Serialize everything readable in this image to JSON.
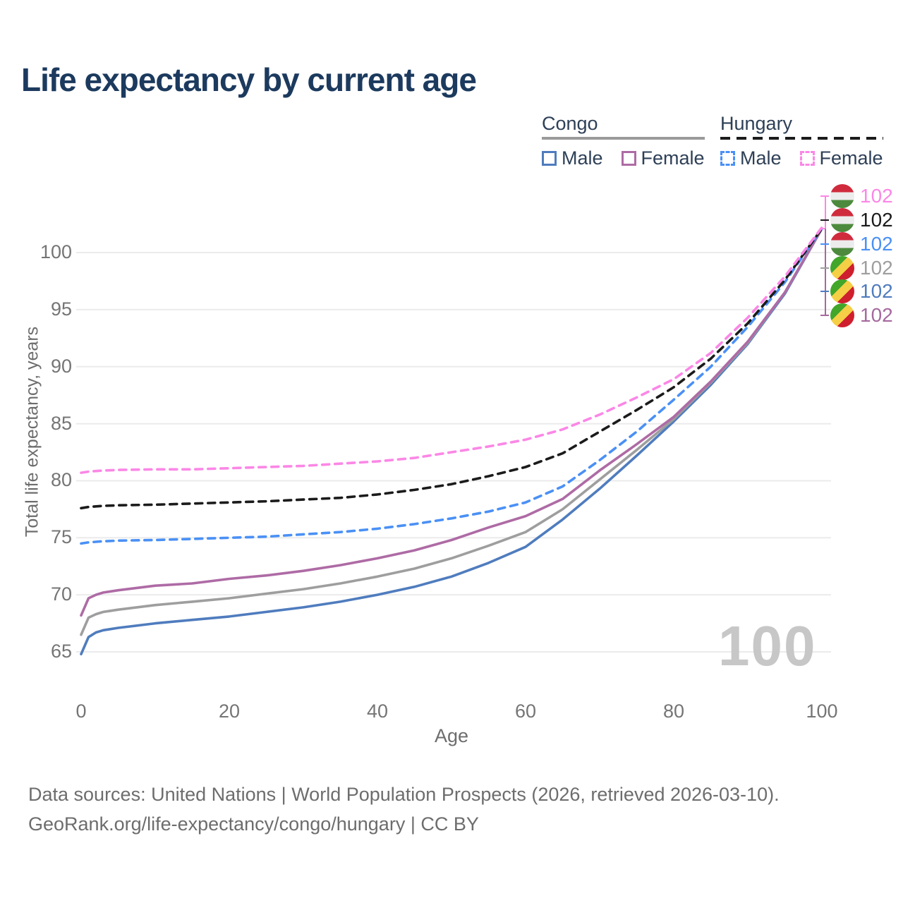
{
  "title": "Life expectancy by current age",
  "legend": {
    "groups": [
      {
        "label": "Congo",
        "line_style": "solid",
        "line_color": "#9a9a9a",
        "items": [
          {
            "label": "Male",
            "color": "#4f7cbe",
            "dashed": false
          },
          {
            "label": "Female",
            "color": "#ae6ba5",
            "dashed": false
          }
        ]
      },
      {
        "label": "Hungary",
        "line_style": "dashed",
        "line_color": "#1b1b1b",
        "items": [
          {
            "label": "Male",
            "color": "#4a90f5",
            "dashed": true
          },
          {
            "label": "Female",
            "color": "#fb87e6",
            "dashed": true
          }
        ]
      }
    ]
  },
  "axes": {
    "y_title": "Total life expectancy, years",
    "x_title": "Age",
    "y_ticks": [
      65,
      70,
      75,
      80,
      85,
      90,
      95,
      100
    ],
    "x_ticks": [
      0,
      20,
      40,
      60,
      80,
      100
    ]
  },
  "watermark": "100",
  "end_labels": [
    {
      "value": "102",
      "flag": "flag flag-hungary",
      "color": "#fb87e6",
      "series": "Hungary Female"
    },
    {
      "value": "102",
      "flag": "flag flag-hungary",
      "color": "#1b1b1b",
      "series": "Hungary"
    },
    {
      "value": "102",
      "flag": "flag flag-hungary",
      "color": "#4a90f5",
      "series": "Hungary Male"
    },
    {
      "value": "102",
      "flag": "flag flag-congo",
      "color": "#9e9e9e",
      "series": "Congo"
    },
    {
      "value": "102",
      "flag": "flag flag-congo",
      "color": "#4f7cbe",
      "series": "Congo Male"
    },
    {
      "value": "102",
      "flag": "flag flag-congo",
      "color": "#a5699e",
      "series": "Congo Female"
    }
  ],
  "footer": {
    "line1": "Data sources: United Nations | World Population Prospects (2026, retrieved 2026-03-10).",
    "line2": "GeoRank.org/life-expectancy/congo/hungary | CC BY"
  },
  "chart_data": {
    "type": "line",
    "title": "Life expectancy by current age",
    "xlabel": "Age",
    "ylabel": "Total life expectancy, years",
    "xlim": [
      0,
      100
    ],
    "ylim": [
      63,
      103
    ],
    "grid": "horizontal",
    "legend_position": "top-right",
    "x": [
      0,
      1,
      2,
      3,
      4,
      5,
      10,
      15,
      20,
      25,
      30,
      35,
      40,
      45,
      50,
      55,
      60,
      65,
      70,
      75,
      80,
      85,
      90,
      95,
      100
    ],
    "series": [
      {
        "name": "Congo Male",
        "country": "Congo",
        "sex": "male",
        "color": "#4f7cbe",
        "dashed": false,
        "values": [
          64.8,
          66.3,
          66.7,
          66.9,
          67.0,
          67.1,
          67.5,
          67.8,
          68.1,
          68.5,
          68.9,
          69.4,
          70.0,
          70.7,
          71.6,
          72.8,
          74.2,
          76.6,
          79.3,
          82.2,
          85.2,
          88.4,
          92.0,
          96.4,
          102.1
        ]
      },
      {
        "name": "Congo",
        "country": "Congo",
        "sex": "both",
        "color": "#9e9e9e",
        "dashed": false,
        "values": [
          66.5,
          68.0,
          68.3,
          68.5,
          68.6,
          68.7,
          69.1,
          69.4,
          69.7,
          70.1,
          70.5,
          71.0,
          71.6,
          72.3,
          73.2,
          74.3,
          75.5,
          77.5,
          80.1,
          82.7,
          85.4,
          88.6,
          92.1,
          96.5,
          102.1
        ]
      },
      {
        "name": "Congo Female",
        "country": "Congo",
        "sex": "female",
        "color": "#ae6ba5",
        "dashed": false,
        "values": [
          68.2,
          69.7,
          70.0,
          70.2,
          70.3,
          70.4,
          70.8,
          71.0,
          71.4,
          71.7,
          72.1,
          72.6,
          73.2,
          73.9,
          74.8,
          75.9,
          76.9,
          78.4,
          80.9,
          83.2,
          85.6,
          88.7,
          92.2,
          96.5,
          102.1
        ]
      },
      {
        "name": "Hungary Male",
        "country": "Hungary",
        "sex": "male",
        "color": "#4a90f5",
        "dashed": true,
        "values": [
          74.5,
          74.6,
          74.65,
          74.7,
          74.72,
          74.75,
          74.8,
          74.9,
          75.0,
          75.1,
          75.3,
          75.5,
          75.8,
          76.2,
          76.7,
          77.3,
          78.1,
          79.5,
          81.8,
          84.3,
          87.1,
          90.0,
          93.5,
          97.4,
          102.1
        ]
      },
      {
        "name": "Hungary",
        "country": "Hungary",
        "sex": "both",
        "color": "#1b1b1b",
        "dashed": true,
        "values": [
          77.6,
          77.7,
          77.75,
          77.8,
          77.82,
          77.85,
          77.9,
          78.0,
          78.1,
          78.2,
          78.35,
          78.5,
          78.8,
          79.2,
          79.7,
          80.4,
          81.2,
          82.4,
          84.3,
          86.2,
          88.2,
          90.7,
          93.8,
          97.6,
          102.1
        ]
      },
      {
        "name": "Hungary Female",
        "country": "Hungary",
        "sex": "female",
        "color": "#fb87e6",
        "dashed": true,
        "values": [
          80.7,
          80.8,
          80.85,
          80.9,
          80.92,
          80.95,
          81.0,
          81.0,
          81.1,
          81.2,
          81.3,
          81.5,
          81.7,
          82.0,
          82.5,
          83.0,
          83.6,
          84.5,
          85.8,
          87.3,
          88.9,
          91.2,
          94.3,
          97.9,
          102.2
        ]
      }
    ]
  }
}
